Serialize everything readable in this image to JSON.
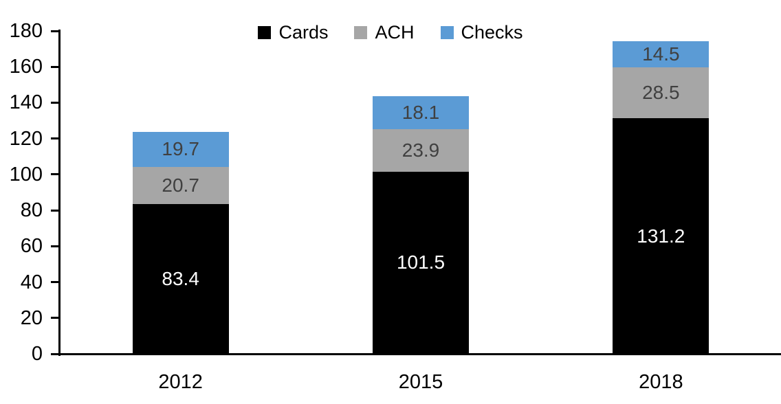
{
  "chart_data": {
    "type": "bar",
    "stacked": true,
    "title": "",
    "xlabel": "",
    "ylabel": "",
    "categories": [
      "2012",
      "2015",
      "2018"
    ],
    "series": [
      {
        "name": "Cards",
        "color": "#000000",
        "label_color": "#ffffff",
        "values": [
          83.4,
          101.5,
          131.2
        ]
      },
      {
        "name": "ACH",
        "color": "#a6a6a6",
        "label_color": "#404040",
        "values": [
          20.7,
          23.9,
          28.5
        ]
      },
      {
        "name": "Checks",
        "color": "#5b9bd5",
        "label_color": "#404040",
        "values": [
          19.7,
          18.1,
          14.5
        ]
      }
    ],
    "ylim": [
      0,
      180
    ],
    "ytick_step": 20,
    "ytick_labels": [
      "0",
      "20",
      "40",
      "60",
      "80",
      "100",
      "120",
      "140",
      "160",
      "180"
    ],
    "grid": false,
    "legend_position": "top-center",
    "axis_color": "#000000",
    "background_color": "#ffffff"
  }
}
